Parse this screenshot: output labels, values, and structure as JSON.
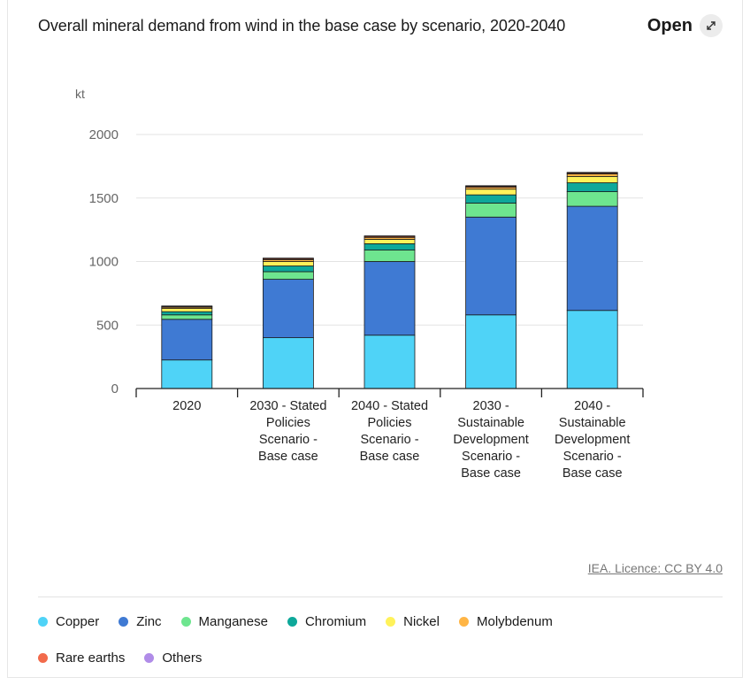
{
  "header": {
    "title": "Overall mineral demand from wind in the base case by scenario, 2020-2040",
    "open_label": "Open"
  },
  "source": "IEA. Licence: CC BY 4.0",
  "colors": {
    "Copper": "#4fd3f7",
    "Zinc": "#3f7ad3",
    "Manganese": "#6ee58f",
    "Chromium": "#0ea89a",
    "Nickel": "#fff25a",
    "Molybdenum": "#ffb545",
    "Rare earths": "#f26a4b",
    "Others": "#b08ce8"
  },
  "chart_data": {
    "type": "bar",
    "stacked": true,
    "unit": "kt",
    "categories": [
      [
        "2020"
      ],
      [
        "2030 - Stated",
        "Policies",
        "Scenario -",
        "Base case"
      ],
      [
        "2040 - Stated",
        "Policies",
        "Scenario -",
        "Base case"
      ],
      [
        "2030 -",
        "Sustainable",
        "Development",
        "Scenario -",
        "Base case"
      ],
      [
        "2040 -",
        "Sustainable",
        "Development",
        "Scenario -",
        "Base case"
      ]
    ],
    "series": [
      {
        "name": "Copper",
        "values": [
          225,
          400,
          420,
          580,
          615
        ]
      },
      {
        "name": "Zinc",
        "values": [
          320,
          460,
          580,
          770,
          820
        ]
      },
      {
        "name": "Manganese",
        "values": [
          35,
          60,
          90,
          110,
          115
        ]
      },
      {
        "name": "Chromium",
        "values": [
          25,
          45,
          50,
          65,
          70
        ]
      },
      {
        "name": "Nickel",
        "values": [
          25,
          35,
          35,
          45,
          50
        ]
      },
      {
        "name": "Molybdenum",
        "values": [
          10,
          15,
          15,
          15,
          20
        ]
      },
      {
        "name": "Rare earths",
        "values": [
          6,
          8,
          8,
          8,
          8
        ]
      },
      {
        "name": "Others",
        "values": [
          4,
          4,
          4,
          4,
          4
        ]
      }
    ],
    "yticks": [
      0,
      500,
      1000,
      1500,
      2000
    ],
    "ylim": [
      0,
      2000
    ],
    "grid": true,
    "legend": "bottom"
  }
}
